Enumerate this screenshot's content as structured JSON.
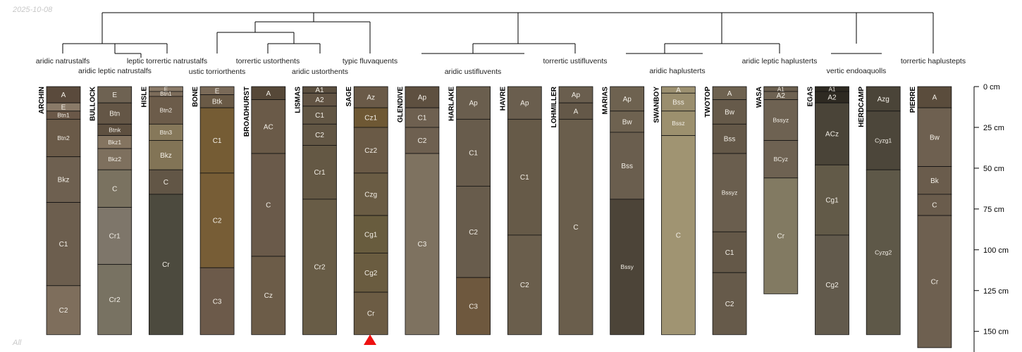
{
  "corner": {
    "date": "2025-10-08",
    "footer": "All"
  },
  "depth_axis": {
    "ticks": [
      "0 cm",
      "25 cm",
      "50 cm",
      "75 cm",
      "100 cm",
      "125 cm",
      "150 cm"
    ]
  },
  "taxa": [
    "aridic natrustalfs",
    "aridic leptic natrustalfs",
    "leptic torrertic natrustalfs",
    "ustic torriorthents",
    "torrertic ustorthents",
    "aridic ustorthents",
    "typic fluvaquents",
    "aridic ustifluvents",
    "torrertic ustifluvents",
    "aridic haplusterts",
    "aridic leptic haplusterts",
    "vertic endoaquolls",
    "torrertic haplustepts"
  ],
  "profiles": [
    {
      "name": "ARCHIN",
      "horizons": [
        {
          "name": "A",
          "top": 0,
          "bottom": 10,
          "color": "#5a4a3c"
        },
        {
          "name": "E",
          "top": 10,
          "bottom": 15,
          "color": "#8a7a68"
        },
        {
          "name": "Btn1",
          "top": 15,
          "bottom": 20,
          "color": "#6a5848"
        },
        {
          "name": "Btn2",
          "top": 20,
          "bottom": 43,
          "color": "#6a5a48"
        },
        {
          "name": "Bkz",
          "top": 43,
          "bottom": 71,
          "color": "#6e6050"
        },
        {
          "name": "C1",
          "top": 71,
          "bottom": 122,
          "color": "#6c5e4e"
        },
        {
          "name": "C2",
          "top": 122,
          "bottom": 152,
          "color": "#7e6e5c"
        }
      ]
    },
    {
      "name": "BULLOCK",
      "horizons": [
        {
          "name": "E",
          "top": 0,
          "bottom": 10,
          "color": "#6e6252"
        },
        {
          "name": "Btn",
          "top": 10,
          "bottom": 23,
          "color": "#645646"
        },
        {
          "name": "Btnk",
          "top": 23,
          "bottom": 30,
          "color": "#5e5040"
        },
        {
          "name": "Bkz1",
          "top": 30,
          "bottom": 38,
          "color": "#847460"
        },
        {
          "name": "Bkz2",
          "top": 38,
          "bottom": 51,
          "color": "#7e705e"
        },
        {
          "name": "C",
          "top": 51,
          "bottom": 74,
          "color": "#7a7260"
        },
        {
          "name": "Cr1",
          "top": 74,
          "bottom": 109,
          "color": "#7e766a"
        },
        {
          "name": "Cr2",
          "top": 109,
          "bottom": 152,
          "color": "#787262"
        }
      ]
    },
    {
      "name": "HISLE",
      "horizons": [
        {
          "name": "E",
          "top": 0,
          "bottom": 3,
          "color": "#8a7a68"
        },
        {
          "name": "Btn1",
          "top": 3,
          "bottom": 6,
          "color": "#7c6c5a"
        },
        {
          "name": "Btn2",
          "top": 6,
          "bottom": 23,
          "color": "#6c5c4a"
        },
        {
          "name": "Btn3",
          "top": 23,
          "bottom": 33,
          "color": "#86785a"
        },
        {
          "name": "Bkz",
          "top": 33,
          "bottom": 51,
          "color": "#827456"
        },
        {
          "name": "C",
          "top": 51,
          "bottom": 66,
          "color": "#625646"
        },
        {
          "name": "Cr",
          "top": 66,
          "bottom": 152,
          "color": "#4c4a3e"
        }
      ]
    },
    {
      "name": "BONE",
      "horizons": [
        {
          "name": "E",
          "top": 0,
          "bottom": 5,
          "color": "#7a6a58"
        },
        {
          "name": "Btk",
          "top": 5,
          "bottom": 13,
          "color": "#6a5a46"
        },
        {
          "name": "C1",
          "top": 13,
          "bottom": 53,
          "color": "#755c34"
        },
        {
          "name": "C2",
          "top": 53,
          "bottom": 111,
          "color": "#775d36"
        },
        {
          "name": "C3",
          "top": 111,
          "bottom": 152,
          "color": "#6c5a4a"
        }
      ]
    },
    {
      "name": "BROADHURST",
      "horizons": [
        {
          "name": "A",
          "top": 0,
          "bottom": 8,
          "color": "#564838"
        },
        {
          "name": "AC",
          "top": 8,
          "bottom": 41,
          "color": "#6a5a48"
        },
        {
          "name": "C",
          "top": 41,
          "bottom": 104,
          "color": "#6a5a4a"
        },
        {
          "name": "Cz",
          "top": 104,
          "bottom": 152,
          "color": "#6c5c48"
        }
      ]
    },
    {
      "name": "LISMAS",
      "horizons": [
        {
          "name": "A1",
          "top": 0,
          "bottom": 4,
          "color": "#5a4e3e"
        },
        {
          "name": "A2",
          "top": 4,
          "bottom": 12,
          "color": "#625444"
        },
        {
          "name": "C1",
          "top": 12,
          "bottom": 23,
          "color": "#625644"
        },
        {
          "name": "C2",
          "top": 23,
          "bottom": 36,
          "color": "#625644"
        },
        {
          "name": "Cr1",
          "top": 36,
          "bottom": 69,
          "color": "#645844"
        },
        {
          "name": "Cr2",
          "top": 69,
          "bottom": 152,
          "color": "#685c46"
        }
      ]
    },
    {
      "name": "SAGE",
      "horizons": [
        {
          "name": "Az",
          "top": 0,
          "bottom": 13,
          "color": "#6a5a48"
        },
        {
          "name": "Cz1",
          "top": 13,
          "bottom": 25,
          "color": "#6e5834"
        },
        {
          "name": "Cz2",
          "top": 25,
          "bottom": 53,
          "color": "#6a5a46"
        },
        {
          "name": "Czg",
          "top": 53,
          "bottom": 79,
          "color": "#6a5c44"
        },
        {
          "name": "Cg1",
          "top": 79,
          "bottom": 102,
          "color": "#685c3e"
        },
        {
          "name": "Cg2",
          "top": 102,
          "bottom": 126,
          "color": "#6a5c40"
        },
        {
          "name": "Cr",
          "top": 126,
          "bottom": 152,
          "color": "#6c5c44"
        }
      ]
    },
    {
      "name": "GLENDIVE",
      "horizons": [
        {
          "name": "Ap",
          "top": 0,
          "bottom": 13,
          "color": "#5e5040"
        },
        {
          "name": "C1",
          "top": 13,
          "bottom": 25,
          "color": "#6e6050"
        },
        {
          "name": "C2",
          "top": 25,
          "bottom": 41,
          "color": "#6e6050"
        },
        {
          "name": "C3",
          "top": 41,
          "bottom": 152,
          "color": "#7e7260"
        }
      ]
    },
    {
      "name": "HARLAKE",
      "horizons": [
        {
          "name": "Ap",
          "top": 0,
          "bottom": 20,
          "color": "#6a5e4e"
        },
        {
          "name": "C1",
          "top": 20,
          "bottom": 61,
          "color": "#685c4c"
        },
        {
          "name": "C2",
          "top": 61,
          "bottom": 117,
          "color": "#685c4c"
        },
        {
          "name": "C3",
          "top": 117,
          "bottom": 152,
          "color": "#6e583e"
        }
      ]
    },
    {
      "name": "HAVRE",
      "horizons": [
        {
          "name": "Ap",
          "top": 0,
          "bottom": 20,
          "color": "#6a5e4e"
        },
        {
          "name": "C1",
          "top": 20,
          "bottom": 91,
          "color": "#665a48"
        },
        {
          "name": "C2",
          "top": 91,
          "bottom": 152,
          "color": "#6a5e4c"
        }
      ]
    },
    {
      "name": "LOHMILLER",
      "horizons": [
        {
          "name": "Ap",
          "top": 0,
          "bottom": 10,
          "color": "#6a5e4e"
        },
        {
          "name": "A",
          "top": 10,
          "bottom": 20,
          "color": "#645848"
        },
        {
          "name": "C",
          "top": 20,
          "bottom": 152,
          "color": "#6a5e4c"
        }
      ]
    },
    {
      "name": "MARIAS",
      "horizons": [
        {
          "name": "Ap",
          "top": 0,
          "bottom": 15,
          "color": "#6e6250"
        },
        {
          "name": "Bw",
          "top": 15,
          "bottom": 28,
          "color": "#6e6250"
        },
        {
          "name": "Bss",
          "top": 28,
          "bottom": 69,
          "color": "#6a5e4e"
        },
        {
          "name": "Bssy",
          "top": 69,
          "bottom": 152,
          "color": "#4c4438"
        }
      ]
    },
    {
      "name": "SWANBOY",
      "horizons": [
        {
          "name": "A",
          "top": 0,
          "bottom": 4,
          "color": "#9c9070"
        },
        {
          "name": "Bss",
          "top": 4,
          "bottom": 15,
          "color": "#9a8e6e"
        },
        {
          "name": "Bssz",
          "top": 15,
          "bottom": 30,
          "color": "#9c906e"
        },
        {
          "name": "C",
          "top": 30,
          "bottom": 152,
          "color": "#a09472"
        }
      ]
    },
    {
      "name": "TWOTOP",
      "horizons": [
        {
          "name": "A",
          "top": 0,
          "bottom": 8,
          "color": "#6e6250"
        },
        {
          "name": "Bw",
          "top": 8,
          "bottom": 23,
          "color": "#665a4a"
        },
        {
          "name": "Bss",
          "top": 23,
          "bottom": 41,
          "color": "#645848"
        },
        {
          "name": "Bssyz",
          "top": 41,
          "bottom": 89,
          "color": "#6a5e4e"
        },
        {
          "name": "C1",
          "top": 89,
          "bottom": 114,
          "color": "#645848"
        },
        {
          "name": "C2",
          "top": 114,
          "bottom": 152,
          "color": "#665a4a"
        }
      ]
    },
    {
      "name": "WASA",
      "horizons": [
        {
          "name": "A1",
          "top": 0,
          "bottom": 3,
          "color": "#6a5e4e"
        },
        {
          "name": "A2",
          "top": 3,
          "bottom": 8,
          "color": "#6e6252"
        },
        {
          "name": "Bssyz",
          "top": 8,
          "bottom": 33,
          "color": "#6e6252"
        },
        {
          "name": "BCyz",
          "top": 33,
          "bottom": 56,
          "color": "#6e6252"
        },
        {
          "name": "Cr",
          "top": 56,
          "bottom": 127,
          "color": "#827a62"
        }
      ]
    },
    {
      "name": "EGAS",
      "horizons": [
        {
          "name": "A1",
          "top": 0,
          "bottom": 3,
          "color": "#2e2a22"
        },
        {
          "name": "A2",
          "top": 3,
          "bottom": 10,
          "color": "#2e2a22"
        },
        {
          "name": "ACz",
          "top": 10,
          "bottom": 48,
          "color": "#4a4438"
        },
        {
          "name": "Cg1",
          "top": 48,
          "bottom": 91,
          "color": "#625a48"
        },
        {
          "name": "Cg2",
          "top": 91,
          "bottom": 152,
          "color": "#625a4c"
        }
      ]
    },
    {
      "name": "HERDCAMP",
      "horizons": [
        {
          "name": "Azg",
          "top": 0,
          "bottom": 15,
          "color": "#4a4438"
        },
        {
          "name": "Cyzg1",
          "top": 15,
          "bottom": 51,
          "color": "#4c463a"
        },
        {
          "name": "Cyzg2",
          "top": 51,
          "bottom": 152,
          "color": "#5e5848"
        }
      ]
    },
    {
      "name": "PIERRE",
      "horizons": [
        {
          "name": "A",
          "top": 0,
          "bottom": 13,
          "color": "#5a4c3c"
        },
        {
          "name": "Bw",
          "top": 13,
          "bottom": 49,
          "color": "#6e6050"
        },
        {
          "name": "Bk",
          "top": 49,
          "bottom": 66,
          "color": "#6a5c4c"
        },
        {
          "name": "C",
          "top": 66,
          "bottom": 79,
          "color": "#6a5c4c"
        },
        {
          "name": "Cr",
          "top": 79,
          "bottom": 160,
          "color": "#6e6050"
        }
      ]
    }
  ]
}
